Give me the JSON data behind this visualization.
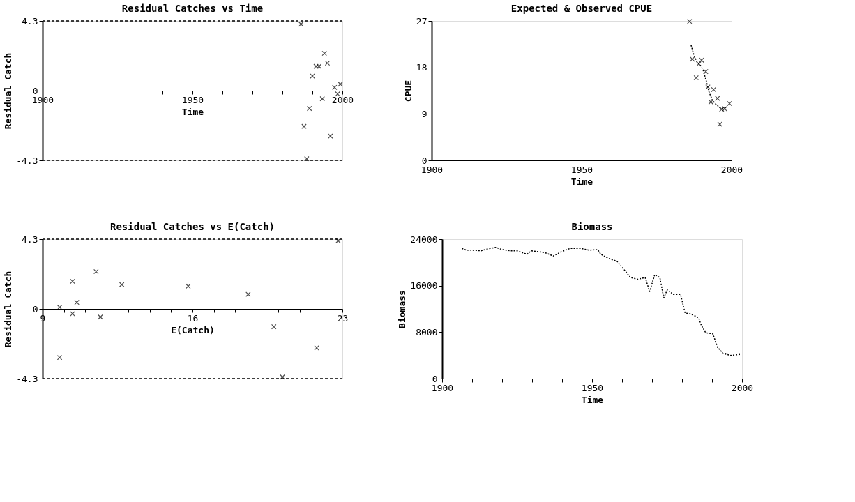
{
  "chart_data": [
    {
      "type": "scatter",
      "title": "Residual Catches vs Time",
      "xlabel": "Time",
      "ylabel": "Residual Catch",
      "marker": "cross",
      "grid": false,
      "xlim": [
        1900,
        2000
      ],
      "xticks": [
        1900,
        {
          "value": 1910,
          "label": null
        },
        {
          "value": 1920,
          "label": null
        },
        {
          "value": 1930,
          "label": null
        },
        {
          "value": 1940,
          "label": null
        },
        1950,
        {
          "value": 1960,
          "label": null
        },
        {
          "value": 1970,
          "label": null
        },
        {
          "value": 1980,
          "label": null
        },
        {
          "value": 1990,
          "label": null
        },
        2000
      ],
      "ylim": [
        -4.3,
        4.3
      ],
      "yticks": [
        -4.3,
        0,
        4.3
      ],
      "ref_lines": [
        {
          "axis": "y",
          "value": 4.3,
          "color": "#000000",
          "line_style": "dashed"
        },
        {
          "axis": "y",
          "value": -4.3,
          "color": "#000000",
          "line_style": "dashed"
        }
      ],
      "series": [
        {
          "color": "#000000",
          "x": [
            1986.2,
            1987.2,
            1988.1,
            1989.0,
            1990.0,
            1991.2,
            1992.2,
            1993.3,
            1994.0,
            1995.0,
            1996.0,
            1997.4,
            1998.4,
            1999.3
          ],
          "values": [
            4.1,
            -2.2,
            -4.2,
            -1.1,
            0.9,
            1.5,
            1.5,
            -0.5,
            2.3,
            1.7,
            -2.8,
            0.2,
            -0.2,
            0.4
          ]
        }
      ]
    },
    {
      "type": "scatter",
      "title": "Expected & Observed CPUE",
      "xlabel": "Time",
      "ylabel": "CPUE",
      "grid": false,
      "xlim": [
        1900,
        2000
      ],
      "xticks": [
        1900,
        {
          "value": 1910,
          "label": null
        },
        {
          "value": 1920,
          "label": null
        },
        {
          "value": 1930,
          "label": null
        },
        {
          "value": 1940,
          "label": null
        },
        1950,
        {
          "value": 1960,
          "label": null
        },
        {
          "value": 1970,
          "label": null
        },
        {
          "value": 1980,
          "label": null
        },
        {
          "value": 1990,
          "label": null
        },
        2000
      ],
      "ylim": [
        0,
        27
      ],
      "yticks": [
        0,
        9,
        18,
        27
      ],
      "series": [
        {
          "type": "scatter",
          "marker": "cross",
          "color": "#000000",
          "x": [
            1986.0,
            1986.9,
            1988.2,
            1989.1,
            1990.0,
            1991.4,
            1992.1,
            1993.1,
            1994.0,
            1995.3,
            1996.1,
            1996.7,
            1997.7,
            1999.3
          ],
          "values": [
            26.9,
            19.6,
            16.0,
            18.7,
            19.4,
            17.2,
            14.2,
            11.3,
            13.7,
            12.0,
            7.0,
            9.9,
            10.0,
            11.0
          ]
        },
        {
          "type": "line",
          "line_style": "dotted",
          "marker": "none",
          "color": "#000000",
          "x": [
            1986.5,
            1987.5,
            1988.5,
            1989.5,
            1990.5,
            1991.5,
            1992.5,
            1993.5,
            1994.5,
            1995.5,
            1996.5,
            1997.5,
            1998.5
          ],
          "values": [
            22.3,
            20.3,
            19.0,
            18.5,
            17.5,
            15.5,
            13.2,
            11.8,
            11.0,
            10.5,
            10.0,
            10.1,
            10.4
          ]
        }
      ]
    },
    {
      "type": "scatter",
      "title": "Residual Catches vs E(Catch)",
      "xlabel": "E(Catch)",
      "ylabel": "Residual Catch",
      "marker": "cross",
      "grid": false,
      "xlim": [
        9,
        23
      ],
      "xticks": [
        9,
        {
          "value": 10,
          "label": null
        },
        {
          "value": 11,
          "label": null
        },
        {
          "value": 12,
          "label": null
        },
        {
          "value": 13,
          "label": null
        },
        {
          "value": 14,
          "label": null
        },
        {
          "value": 15,
          "label": null
        },
        16,
        {
          "value": 17,
          "label": null
        },
        {
          "value": 18,
          "label": null
        },
        {
          "value": 19,
          "label": null
        },
        {
          "value": 20,
          "label": null
        },
        {
          "value": 21,
          "label": null
        },
        {
          "value": 22,
          "label": null
        },
        23
      ],
      "ylim": [
        -4.3,
        4.3
      ],
      "yticks": [
        -4.3,
        0,
        4.3
      ],
      "ref_lines": [
        {
          "axis": "y",
          "value": 4.3,
          "color": "#000000",
          "line_style": "dashed"
        },
        {
          "axis": "y",
          "value": -4.3,
          "color": "#000000",
          "line_style": "dashed"
        }
      ],
      "series": [
        {
          "color": "#000000",
          "x": [
            9.8,
            9.8,
            10.4,
            10.4,
            10.6,
            11.5,
            11.7,
            12.7,
            15.8,
            18.6,
            19.8,
            20.2,
            21.8,
            22.8
          ],
          "values": [
            0.1,
            -3.0,
            1.7,
            -0.3,
            0.4,
            2.3,
            -0.5,
            1.5,
            1.4,
            0.9,
            -1.1,
            -4.2,
            -2.4,
            4.2
          ]
        }
      ]
    },
    {
      "type": "line",
      "title": "Biomass",
      "xlabel": "Time",
      "ylabel": "Biomass",
      "line_style": "dotted",
      "marker": "none",
      "grid": false,
      "xlim": [
        1900,
        2000
      ],
      "xticks": [
        1900,
        {
          "value": 1910,
          "label": null
        },
        {
          "value": 1920,
          "label": null
        },
        {
          "value": 1930,
          "label": null
        },
        {
          "value": 1940,
          "label": null
        },
        1950,
        {
          "value": 1960,
          "label": null
        },
        {
          "value": 1970,
          "label": null
        },
        {
          "value": 1980,
          "label": null
        },
        {
          "value": 1990,
          "label": null
        },
        2000
      ],
      "ylim": [
        0,
        24000
      ],
      "yticks": [
        0,
        8000,
        16000,
        24000
      ],
      "series": [
        {
          "color": "#000000",
          "x": [
            1906.6,
            1908.1,
            1910,
            1913,
            1915,
            1917.9,
            1920,
            1922.9,
            1925,
            1928.3,
            1929.8,
            1932.7,
            1934.7,
            1937.1,
            1939.6,
            1942.6,
            1946.5,
            1949,
            1951.9,
            1952.9,
            1955.4,
            1958.3,
            1960.3,
            1962.8,
            1965.3,
            1967.7,
            1969.2,
            1970.9,
            1972.6,
            1973.9,
            1975.1,
            1977.1,
            1979.5,
            1981.0,
            1983,
            1985.5,
            1986.4,
            1987.9,
            1990.3,
            1991.8,
            1993.8,
            1996.3,
            1998.2,
            1999.7
          ],
          "values": [
            22400,
            22100,
            22100,
            22000,
            22300,
            22600,
            22200,
            22000,
            22000,
            21400,
            22000,
            21800,
            21600,
            21100,
            21800,
            22400,
            22400,
            22100,
            22200,
            21400,
            20700,
            20200,
            19000,
            17400,
            17100,
            17400,
            15000,
            17900,
            17400,
            13900,
            15300,
            14500,
            14500,
            11300,
            11100,
            10500,
            9200,
            7900,
            7700,
            5400,
            4300,
            4000,
            4100,
            4200
          ]
        }
      ]
    }
  ]
}
